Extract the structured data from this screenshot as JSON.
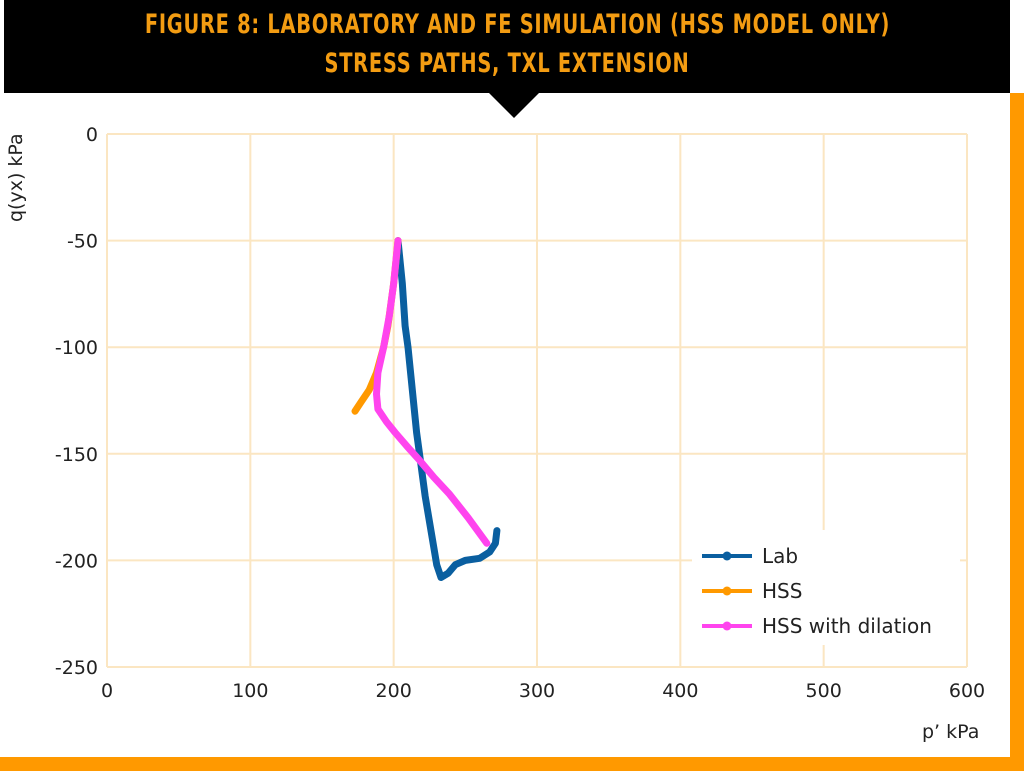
{
  "header": {
    "line1": "FIGURE 8: LABORATORY AND FE SIMULATION (HSS MODEL ONLY)",
    "line2": "STRESS PATHS, TXL EXTENSION"
  },
  "colors": {
    "frame": "#ff9900",
    "header_bg": "#000000",
    "title": "#f39c12",
    "grid": "#fbe6c2"
  },
  "chart_data": {
    "type": "line",
    "title": "FIGURE 8: LABORATORY AND FE SIMULATION (HSS MODEL ONLY) STRESS PATHS, TXL EXTENSION",
    "xlabel": "p’ kPa",
    "ylabel": "q(yx) kPa",
    "xlim": [
      0,
      600
    ],
    "ylim": [
      -250,
      0
    ],
    "xticks": [
      "0",
      "100",
      "200",
      "300",
      "400",
      "500",
      "600"
    ],
    "yticks": [
      "0",
      "-50",
      "-100",
      "-150",
      "-200",
      "-250"
    ],
    "grid": true,
    "legend_placement": "bottom-right",
    "series": [
      {
        "name": "Lab",
        "color": "#0a5fa0",
        "points": [
          [
            203,
            -50
          ],
          [
            206,
            -70
          ],
          [
            208,
            -90
          ],
          [
            210,
            -100
          ],
          [
            213,
            -120
          ],
          [
            216,
            -140
          ],
          [
            218,
            -150
          ],
          [
            222,
            -170
          ],
          [
            227,
            -190
          ],
          [
            230,
            -202
          ],
          [
            233,
            -208
          ],
          [
            238,
            -206
          ],
          [
            243,
            -202
          ],
          [
            250,
            -200
          ],
          [
            260,
            -199
          ],
          [
            267,
            -196
          ],
          [
            271,
            -192
          ],
          [
            272,
            -186
          ]
        ]
      },
      {
        "name": "HSS",
        "color": "#ff9900",
        "points": [
          [
            203,
            -50
          ],
          [
            200,
            -70
          ],
          [
            196,
            -90
          ],
          [
            193,
            -100
          ],
          [
            188,
            -112
          ],
          [
            183,
            -120
          ],
          [
            177,
            -126
          ],
          [
            173,
            -130
          ]
        ]
      },
      {
        "name": "HSS with dilation",
        "color": "#ff44ee",
        "points": [
          [
            203,
            -50
          ],
          [
            200,
            -70
          ],
          [
            197,
            -85
          ],
          [
            193,
            -100
          ],
          [
            189,
            -112
          ],
          [
            188,
            -122
          ],
          [
            189,
            -129
          ],
          [
            195,
            -135
          ],
          [
            201,
            -140
          ],
          [
            210,
            -147
          ],
          [
            218,
            -153
          ],
          [
            228,
            -161
          ],
          [
            239,
            -169
          ],
          [
            252,
            -180
          ],
          [
            265,
            -192
          ]
        ]
      }
    ]
  }
}
